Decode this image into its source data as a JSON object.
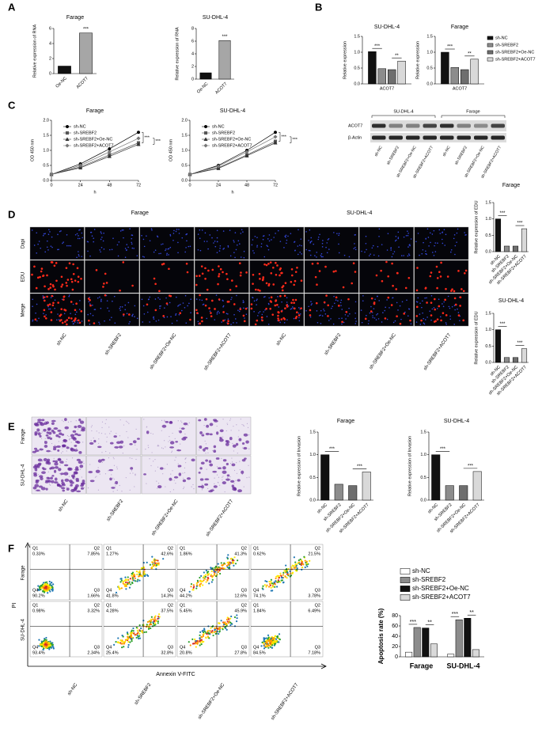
{
  "panel_labels": [
    "A",
    "B",
    "C",
    "D",
    "E",
    "F"
  ],
  "chart_data": [
    {
      "type": "bar",
      "title": "Farage",
      "y_label": "Relative expression of RNA",
      "categories": [
        "Oe-NC",
        "ACOT7"
      ],
      "values": [
        1,
        5.4
      ],
      "colors": [
        "#111111",
        "#a6a6a6"
      ],
      "ylim": [
        0,
        6
      ],
      "yticks": [
        0,
        2,
        4,
        6
      ],
      "annotations": [
        "***"
      ]
    },
    {
      "type": "bar",
      "title": "SU-DHL-4",
      "y_label": "Relative expression of RNA",
      "categories": [
        "Oe-NC",
        "ACOT7"
      ],
      "values": [
        1,
        6.1
      ],
      "colors": [
        "#111111",
        "#a6a6a6"
      ],
      "ylim": [
        0,
        8
      ],
      "yticks": [
        0,
        2,
        4,
        6,
        8
      ],
      "annotations": [
        "***"
      ]
    },
    {
      "type": "bar",
      "title": "SU-DHL-4",
      "y_label": "Relative expression",
      "categories": [
        "ACOT7"
      ],
      "series": [
        {
          "color": "#111111",
          "values": [
            1.02
          ]
        },
        {
          "color": "#8c8c8c",
          "values": [
            0.48
          ]
        },
        {
          "color": "#6e6e6e",
          "values": [
            0.45
          ]
        },
        {
          "color": "#d9d9d9",
          "values": [
            0.72
          ]
        }
      ],
      "ylim": [
        0,
        1.5
      ],
      "yticks": [
        {
          "value": 0,
          "label": "0.0"
        },
        0.5,
        {
          "value": 1,
          "label": "1.0"
        },
        1.5
      ],
      "annotations": [
        "***",
        "**"
      ]
    },
    {
      "type": "bar",
      "title": "Farage",
      "y_label": "Relative expression",
      "categories": [
        "ACOT7"
      ],
      "series": [
        {
          "name": "sh-NC",
          "color": "#111111",
          "values": [
            1.0
          ]
        },
        {
          "name": "sh-SREBF2",
          "color": "#8c8c8c",
          "values": [
            0.52
          ]
        },
        {
          "name": "sh-SREBF2+Oe-NC",
          "color": "#6e6e6e",
          "values": [
            0.45
          ]
        },
        {
          "name": "sh-SREBF2+ACOT7",
          "color": "#d9d9d9",
          "values": [
            0.78
          ]
        }
      ],
      "ylim": [
        0,
        1.5
      ],
      "yticks": [
        {
          "value": 0,
          "label": "0.0"
        },
        0.5,
        {
          "value": 1,
          "label": "1.0"
        },
        1.5
      ],
      "legend": "right",
      "annotations": [
        "***",
        "**"
      ]
    },
    {
      "type": "line",
      "title": "Farage",
      "x_label": "h",
      "y_label": "OD 450 nm",
      "x": [
        0,
        24,
        48,
        72
      ],
      "xlim": [
        0,
        72
      ],
      "xticks": [
        0,
        24,
        48,
        72
      ],
      "ylim": [
        0,
        2
      ],
      "yticks": [
        {
          "value": 0,
          "label": "0.0"
        },
        0.5,
        {
          "value": 1,
          "label": "1.0"
        },
        1.5,
        {
          "value": 2,
          "label": "2.0"
        }
      ],
      "series": [
        {
          "name": "sh-NC",
          "color": "#000000",
          "marker": "circle",
          "values": [
            0.2,
            0.55,
            1.05,
            1.6
          ]
        },
        {
          "name": "sh-SREBF2",
          "color": "#555555",
          "marker": "square",
          "values": [
            0.2,
            0.45,
            0.85,
            1.25
          ]
        },
        {
          "name": "sh-SREBF2+Oe-NC",
          "color": "#333333",
          "marker": "triangle",
          "values": [
            0.2,
            0.42,
            0.8,
            1.2
          ]
        },
        {
          "name": "sh-SREBF2+ACOT7",
          "color": "#777777",
          "marker": "diamond",
          "values": [
            0.2,
            0.5,
            0.95,
            1.4
          ]
        }
      ],
      "legend": "upper left",
      "annotations": [
        "***",
        "***"
      ]
    },
    {
      "type": "line",
      "title": "SU-DHL-4",
      "x_label": "h",
      "y_label": "OD 450 nm",
      "x": [
        0,
        24,
        48,
        72
      ],
      "xlim": [
        0,
        72
      ],
      "xticks": [
        0,
        24,
        48,
        72
      ],
      "ylim": [
        0,
        2
      ],
      "yticks": [
        {
          "value": 0,
          "label": "0.0"
        },
        0.5,
        {
          "value": 1,
          "label": "1.0"
        },
        1.5,
        {
          "value": 2,
          "label": "2.0"
        }
      ],
      "series": [
        {
          "name": "sh-NC",
          "color": "#000000",
          "marker": "circle",
          "values": [
            0.2,
            0.5,
            1.0,
            1.6
          ]
        },
        {
          "name": "sh-SREBF2",
          "color": "#555555",
          "marker": "square",
          "values": [
            0.2,
            0.42,
            0.85,
            1.3
          ]
        },
        {
          "name": "sh-SREBF2+Oe-NC",
          "color": "#333333",
          "marker": "triangle",
          "values": [
            0.2,
            0.4,
            0.82,
            1.25
          ]
        },
        {
          "name": "sh-SREBF2+ACOT7",
          "color": "#777777",
          "marker": "diamond",
          "values": [
            0.2,
            0.47,
            0.95,
            1.45
          ]
        }
      ],
      "legend": "upper left",
      "annotations": [
        "***",
        "***"
      ]
    },
    {
      "type": "bar",
      "title": "Farage",
      "y_label": "Relative expression of EDU",
      "categories": [
        "sh-NC",
        "sh-SREBF2",
        "sh-SREBF2+Oe-NC",
        "sh-SREBF2+ACOT7"
      ],
      "values": [
        1.0,
        0.17,
        0.17,
        0.7
      ],
      "colors": [
        "#111111",
        "#8c8c8c",
        "#6e6e6e",
        "#d9d9d9"
      ],
      "ylim": [
        0,
        1.5
      ],
      "yticks": [
        {
          "value": 0,
          "label": "0.0"
        },
        0.5,
        {
          "value": 1,
          "label": "1.0"
        },
        1.5
      ],
      "annotations": [
        "***",
        "***"
      ]
    },
    {
      "type": "bar",
      "title": "SU-DHL-4",
      "y_label": "Relative expression of EDU",
      "categories": [
        "sh-NC",
        "sh-SREBF2",
        "sh-SREBF2+Oe-NC",
        "sh-SREBF2+ACOT7"
      ],
      "values": [
        1.0,
        0.15,
        0.15,
        0.42
      ],
      "colors": [
        "#111111",
        "#8c8c8c",
        "#6e6e6e",
        "#d9d9d9"
      ],
      "ylim": [
        0,
        1.5
      ],
      "yticks": [
        {
          "value": 0,
          "label": "0.0"
        },
        0.5,
        {
          "value": 1,
          "label": "1.0"
        },
        1.5
      ],
      "annotations": [
        "***",
        "***"
      ]
    },
    {
      "type": "bar",
      "title": "Farage",
      "y_label": "Relative expression of Invasion",
      "categories": [
        "sh-NC",
        "sh-SREBF2",
        "sh-SREBF2+Oe-NC",
        "sh-SREBF2+ACOT7"
      ],
      "values": [
        1.0,
        0.35,
        0.32,
        0.62
      ],
      "colors": [
        "#111111",
        "#8c8c8c",
        "#6e6e6e",
        "#d9d9d9"
      ],
      "ylim": [
        0,
        1.5
      ],
      "yticks": [
        {
          "value": 0,
          "label": "0.0"
        },
        0.5,
        {
          "value": 1,
          "label": "1.0"
        },
        1.5
      ],
      "annotations": [
        "***",
        "***"
      ]
    },
    {
      "type": "bar",
      "title": "SU-DHL-4",
      "y_label": "Relative expression of Invasion",
      "categories": [
        "sh-NC",
        "sh-SREBF2",
        "sh-SREBF2+Oe-NC",
        "sh-SREBF2+ACOT7"
      ],
      "values": [
        1.0,
        0.32,
        0.32,
        0.63
      ],
      "colors": [
        "#111111",
        "#8c8c8c",
        "#6e6e6e",
        "#d9d9d9"
      ],
      "ylim": [
        0,
        1.5
      ],
      "yticks": [
        {
          "value": 0,
          "label": "0.0"
        },
        0.5,
        {
          "value": 1,
          "label": "1.0"
        },
        1.5
      ],
      "annotations": [
        "***",
        "***"
      ]
    },
    {
      "type": "bar",
      "y_label": "Apoptosis rate (%)",
      "categories": [
        "Farage",
        "SU-DHL-4"
      ],
      "series": [
        {
          "name": "sh-NC",
          "color": "#ffffff",
          "values": [
            9,
            5
          ]
        },
        {
          "name": "sh-SREBF2",
          "color": "#8c8c8c",
          "values": [
            57,
            72
          ]
        },
        {
          "name": "sh-SREBF2+Oe-NC",
          "color": "#111111",
          "values": [
            56,
            75
          ]
        },
        {
          "name": "sh-SREBF2+ACOT7",
          "color": "#d9d9d9",
          "values": [
            25,
            14
          ]
        }
      ],
      "ylim": [
        0,
        80
      ],
      "yticks": [
        0,
        20,
        40,
        60,
        80
      ],
      "legend": "top",
      "annotations": [
        "***",
        "**",
        "***",
        "**"
      ]
    }
  ],
  "western_blot": {
    "groups": [
      "SU-DHL-4",
      "Farage"
    ],
    "rows": [
      "ACOT7",
      "β-Actin"
    ],
    "lanes": [
      "sh-NC",
      "sh-SREBF2",
      "sh-SREBF2+Oe-NC",
      "sh-SREBF2+ACOT7",
      "sh-NC",
      "sh-SREBF2",
      "sh-SREBF2+Oe-NC",
      "sh-SREBF2+ACOT7"
    ]
  },
  "edu_images": {
    "groups": [
      "Farage",
      "SU-DHL-4"
    ],
    "rows": [
      "Dapi",
      "EDU",
      "Merge"
    ],
    "columns": [
      "sh-NC",
      "sh-SREBF2",
      "sh-SREBF2+Oe-NC",
      "sh-SREBF2+ACOT7",
      "sh-NC",
      "sh-SREBF2",
      "sh-SREBF2+Oe-NC",
      "sh-SREBF2+ACOT7"
    ]
  },
  "invasion_images": {
    "rows": [
      "Farage",
      "SU-DHL-4"
    ],
    "columns": [
      "sh-NC",
      "sh-SREBF2",
      "sh-SREBF2+Oe-NC",
      "sh-SREBF2+ACOT7"
    ]
  },
  "flow_cytometry": {
    "rows": [
      "Farage",
      "SU-DHL-4"
    ],
    "columns": [
      "sh-NC",
      "sh-SREBF2",
      "sh-SREBF2+Oe-NC",
      "sh-SREBF2+ACOT7"
    ],
    "y_label": "PI",
    "x_label": "Annexin V-FITC",
    "quadrant_names": [
      "Q1",
      "Q2",
      "Q3",
      "Q4"
    ],
    "plots": [
      [
        [
          "0.33%",
          "7.85%",
          "1.66%",
          "90.2%"
        ],
        [
          "1.27%",
          "42.6%",
          "14.3%",
          "41.8%"
        ],
        [
          "1.86%",
          "41.3%",
          "12.6%",
          "44.2%"
        ],
        [
          "0.62%",
          "21.5%",
          "3.78%",
          "74.1%"
        ]
      ],
      [
        [
          "0.98%",
          "3.32%",
          "2.34%",
          "93.4%"
        ],
        [
          "4.28%",
          "37.5%",
          "32.8%",
          "25.4%"
        ],
        [
          "5.45%",
          "45.9%",
          "27.8%",
          "20.8%"
        ],
        [
          "1.84%",
          "6.49%",
          "7.18%",
          "84.5%"
        ]
      ]
    ]
  }
}
